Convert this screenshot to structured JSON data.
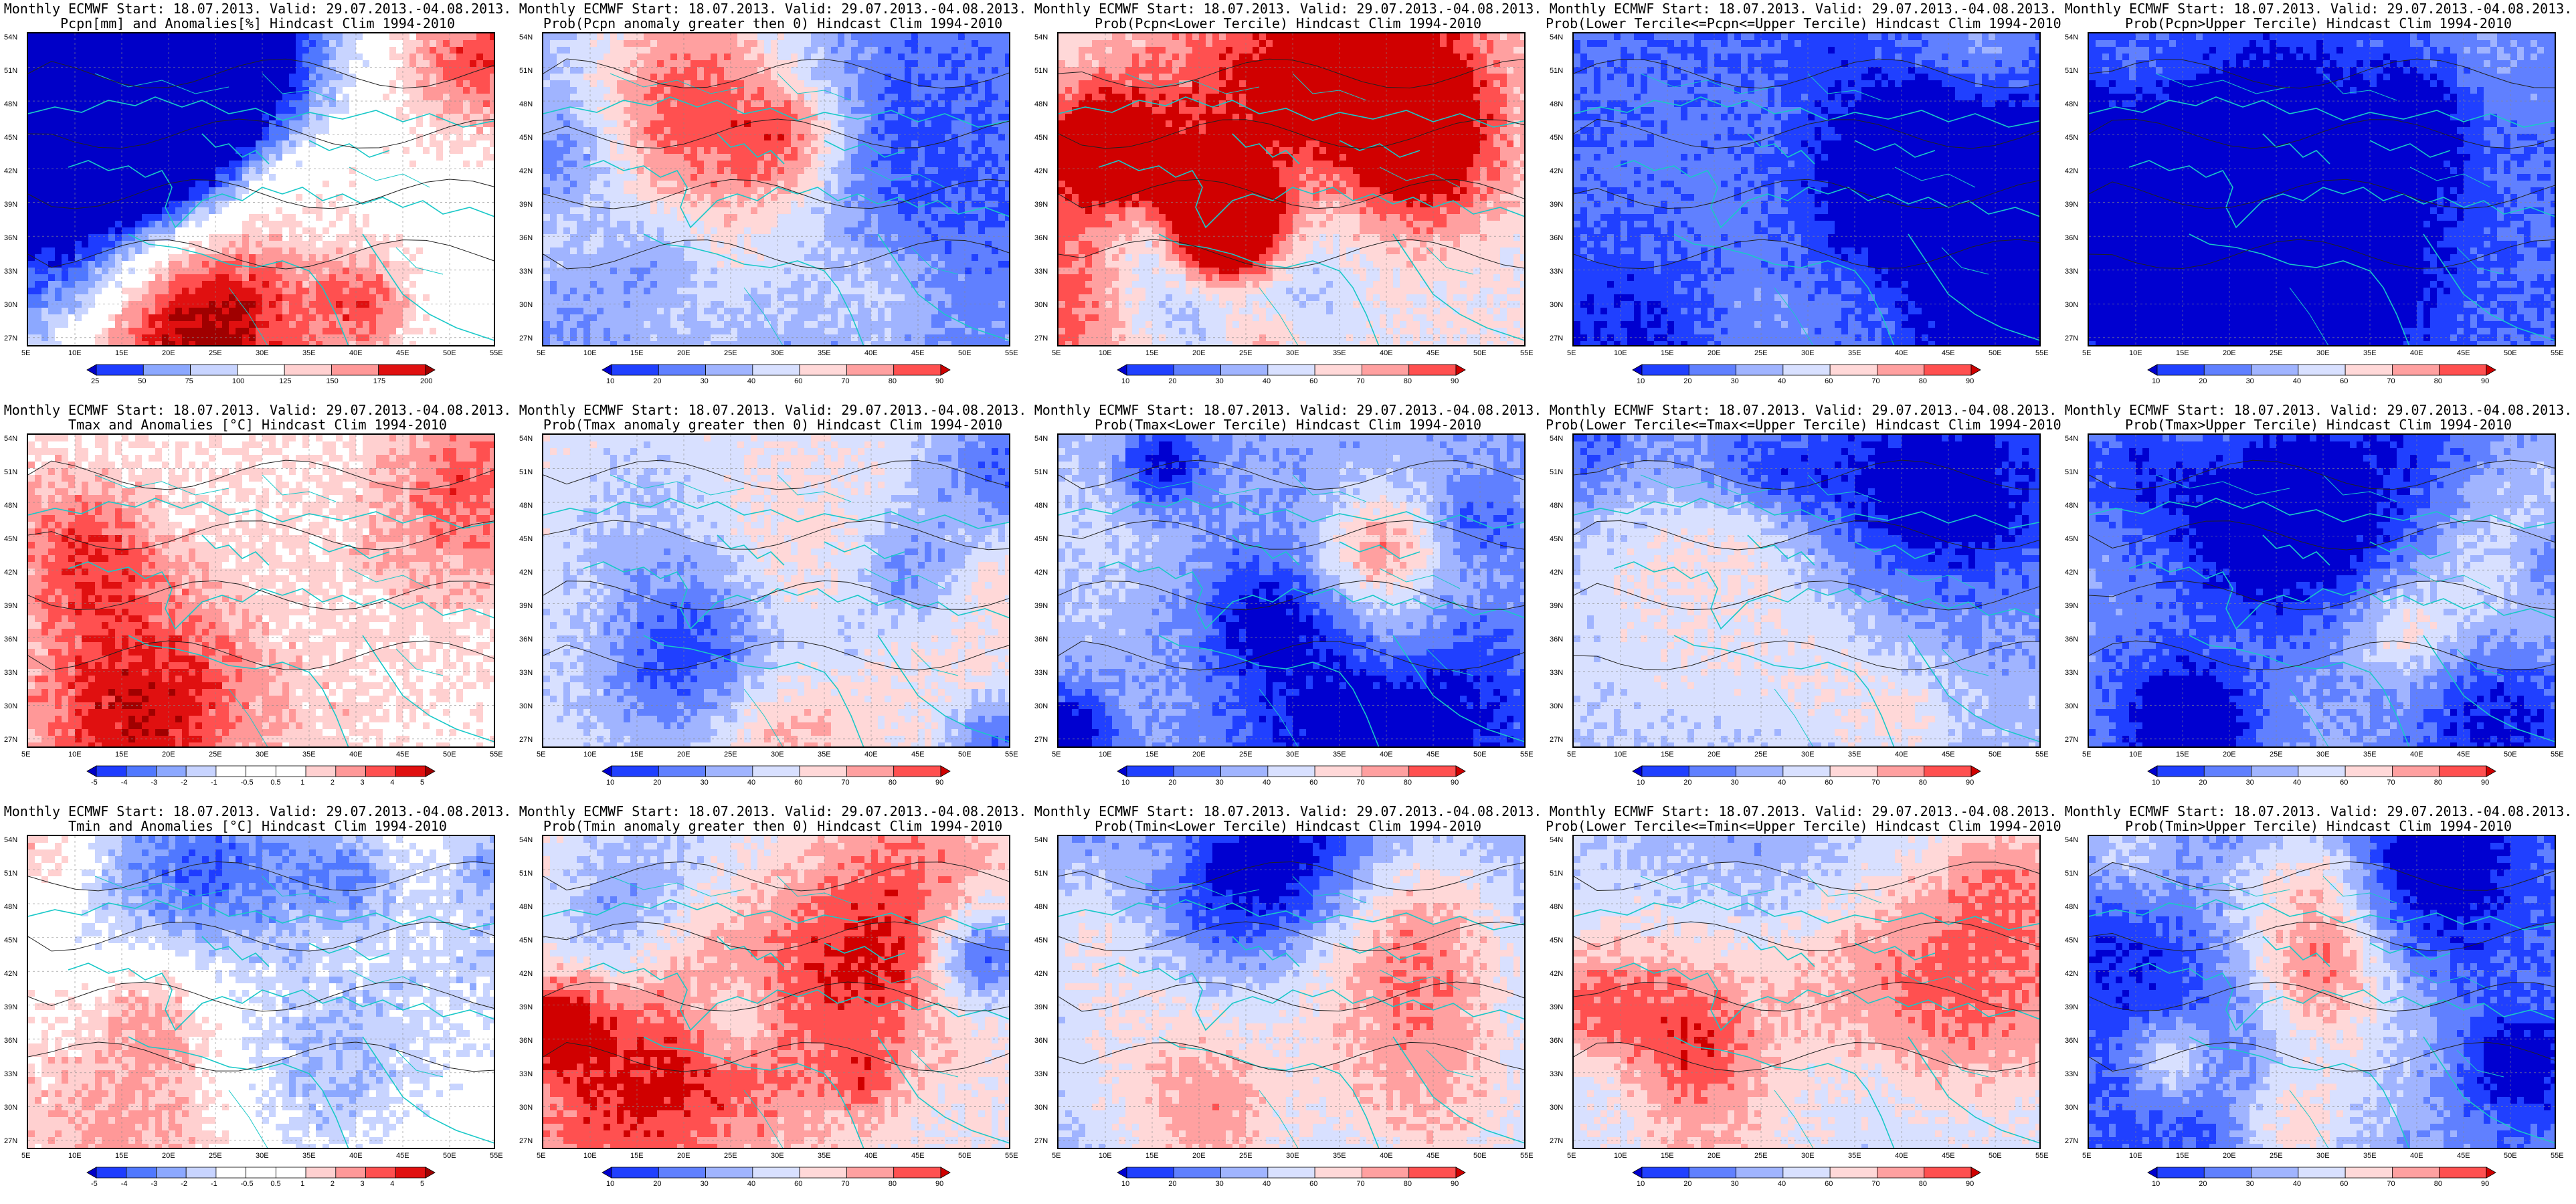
{
  "title_line1": "Monthly ECMWF Start: 18.07.2013. Valid: 29.07.2013.-04.08.2013.",
  "lat_ticks": [
    "54N",
    "51N",
    "48N",
    "45N",
    "42N",
    "39N",
    "36N",
    "33N",
    "30N",
    "27N"
  ],
  "lon_ticks": [
    "5E",
    "10E",
    "15E",
    "20E",
    "25E",
    "30E",
    "35E",
    "40E",
    "45E",
    "50E",
    "55E"
  ],
  "palettes": {
    "anomaly": [
      "#0000c8",
      "#1e3cff",
      "#5078ff",
      "#8ca8ff",
      "#c8d4ff",
      "#ffffff",
      "#ffffff",
      "#ffd0d0",
      "#ff9898",
      "#ff5050",
      "#e01010",
      "#a00000"
    ],
    "prob": [
      "#0000d0",
      "#2040ff",
      "#6080ff",
      "#a0b4ff",
      "#d8e0ff",
      "#ffd8d8",
      "#ffa0a0",
      "#ff5050",
      "#d00000"
    ]
  },
  "colorbars": {
    "pcpn": [
      "25",
      "50",
      "75",
      "100",
      "125",
      "150",
      "175",
      "200"
    ],
    "temp": [
      "-5",
      "-4",
      "-3",
      "-2",
      "-1",
      "-0.5",
      "0.5",
      "1",
      "2",
      "3",
      "4",
      "5"
    ],
    "prob": [
      "10",
      "20",
      "30",
      "40",
      "60",
      "70",
      "80",
      "90"
    ]
  },
  "panels": [
    {
      "id": "pcpn-anom",
      "title": "Pcpn[mm] and Anomalies[%] Hindcast Clim 1994-2010",
      "palette": "anomaly",
      "colorbar": "pcpn",
      "bias": 0.0,
      "spread": 1.2,
      "seed": 11
    },
    {
      "id": "pcpn-prob-gt0",
      "title": "Prob(Pcpn anomaly greater then 0) Hindcast Clim 1994-2010",
      "palette": "prob",
      "colorbar": "prob",
      "bias": -0.45,
      "spread": 0.9,
      "seed": 23
    },
    {
      "id": "pcpn-prob-lower",
      "title": "Prob(Pcpn<Lower Tercile) Hindcast Clim 1994-2010",
      "palette": "prob",
      "colorbar": "prob",
      "bias": 0.15,
      "spread": 1.3,
      "seed": 37
    },
    {
      "id": "pcpn-prob-middle",
      "title": "Prob(Lower Tercile<=Pcpn<=Upper Tercile) Hindcast Clim 1994-2010",
      "palette": "prob",
      "colorbar": "prob",
      "bias": -0.6,
      "spread": 0.8,
      "seed": 41
    },
    {
      "id": "pcpn-prob-upper",
      "title": "Prob(Pcpn>Upper Tercile) Hindcast Clim 1994-2010",
      "palette": "prob",
      "colorbar": "prob",
      "bias": -0.55,
      "spread": 0.8,
      "seed": 53
    },
    {
      "id": "tmax-anom",
      "title": "Tmax and Anomalies [°C] Hindcast Clim 1994-2010",
      "palette": "anomaly",
      "colorbar": "temp",
      "bias": 0.05,
      "spread": 0.5,
      "seed": 61
    },
    {
      "id": "tmax-prob-gt0",
      "title": "Prob(Tmax anomaly greater then 0) Hindcast Clim 1994-2010",
      "palette": "prob",
      "colorbar": "prob",
      "bias": 0.05,
      "spread": 0.8,
      "seed": 71
    },
    {
      "id": "tmax-prob-lower",
      "title": "Prob(Tmax<Lower Tercile) Hindcast Clim 1994-2010",
      "palette": "prob",
      "colorbar": "prob",
      "bias": -0.35,
      "spread": 0.8,
      "seed": 83
    },
    {
      "id": "tmax-prob-middle",
      "title": "Prob(Lower Tercile<=Tmax<=Upper Tercile) Hindcast Clim 1994-2010",
      "palette": "prob",
      "colorbar": "prob",
      "bias": -0.2,
      "spread": 0.6,
      "seed": 97
    },
    {
      "id": "tmax-prob-upper",
      "title": "Prob(Tmax>Upper Tercile) Hindcast Clim 1994-2010",
      "palette": "prob",
      "colorbar": "prob",
      "bias": -0.25,
      "spread": 0.9,
      "seed": 101
    },
    {
      "id": "tmin-anom",
      "title": "Tmin and Anomalies [°C] Hindcast Clim 1994-2010",
      "palette": "anomaly",
      "colorbar": "temp",
      "bias": 0.05,
      "spread": 0.5,
      "seed": 113
    },
    {
      "id": "tmin-prob-gt0",
      "title": "Prob(Tmin anomaly greater then 0) Hindcast Clim 1994-2010",
      "palette": "prob",
      "colorbar": "prob",
      "bias": 0.15,
      "spread": 1.0,
      "seed": 127
    },
    {
      "id": "tmin-prob-lower",
      "title": "Prob(Tmin<Lower Tercile) Hindcast Clim 1994-2010",
      "palette": "prob",
      "colorbar": "prob",
      "bias": -0.35,
      "spread": 1.0,
      "seed": 131
    },
    {
      "id": "tmin-prob-middle",
      "title": "Prob(Lower Tercile<=Tmin<=Upper Tercile) Hindcast Clim 1994-2010",
      "palette": "prob",
      "colorbar": "prob",
      "bias": -0.25,
      "spread": 0.7,
      "seed": 139
    },
    {
      "id": "tmin-prob-upper",
      "title": "Prob(Tmin>Upper Tercile) Hindcast Clim 1994-2010",
      "palette": "prob",
      "colorbar": "prob",
      "bias": -0.45,
      "spread": 0.9,
      "seed": 149
    }
  ]
}
